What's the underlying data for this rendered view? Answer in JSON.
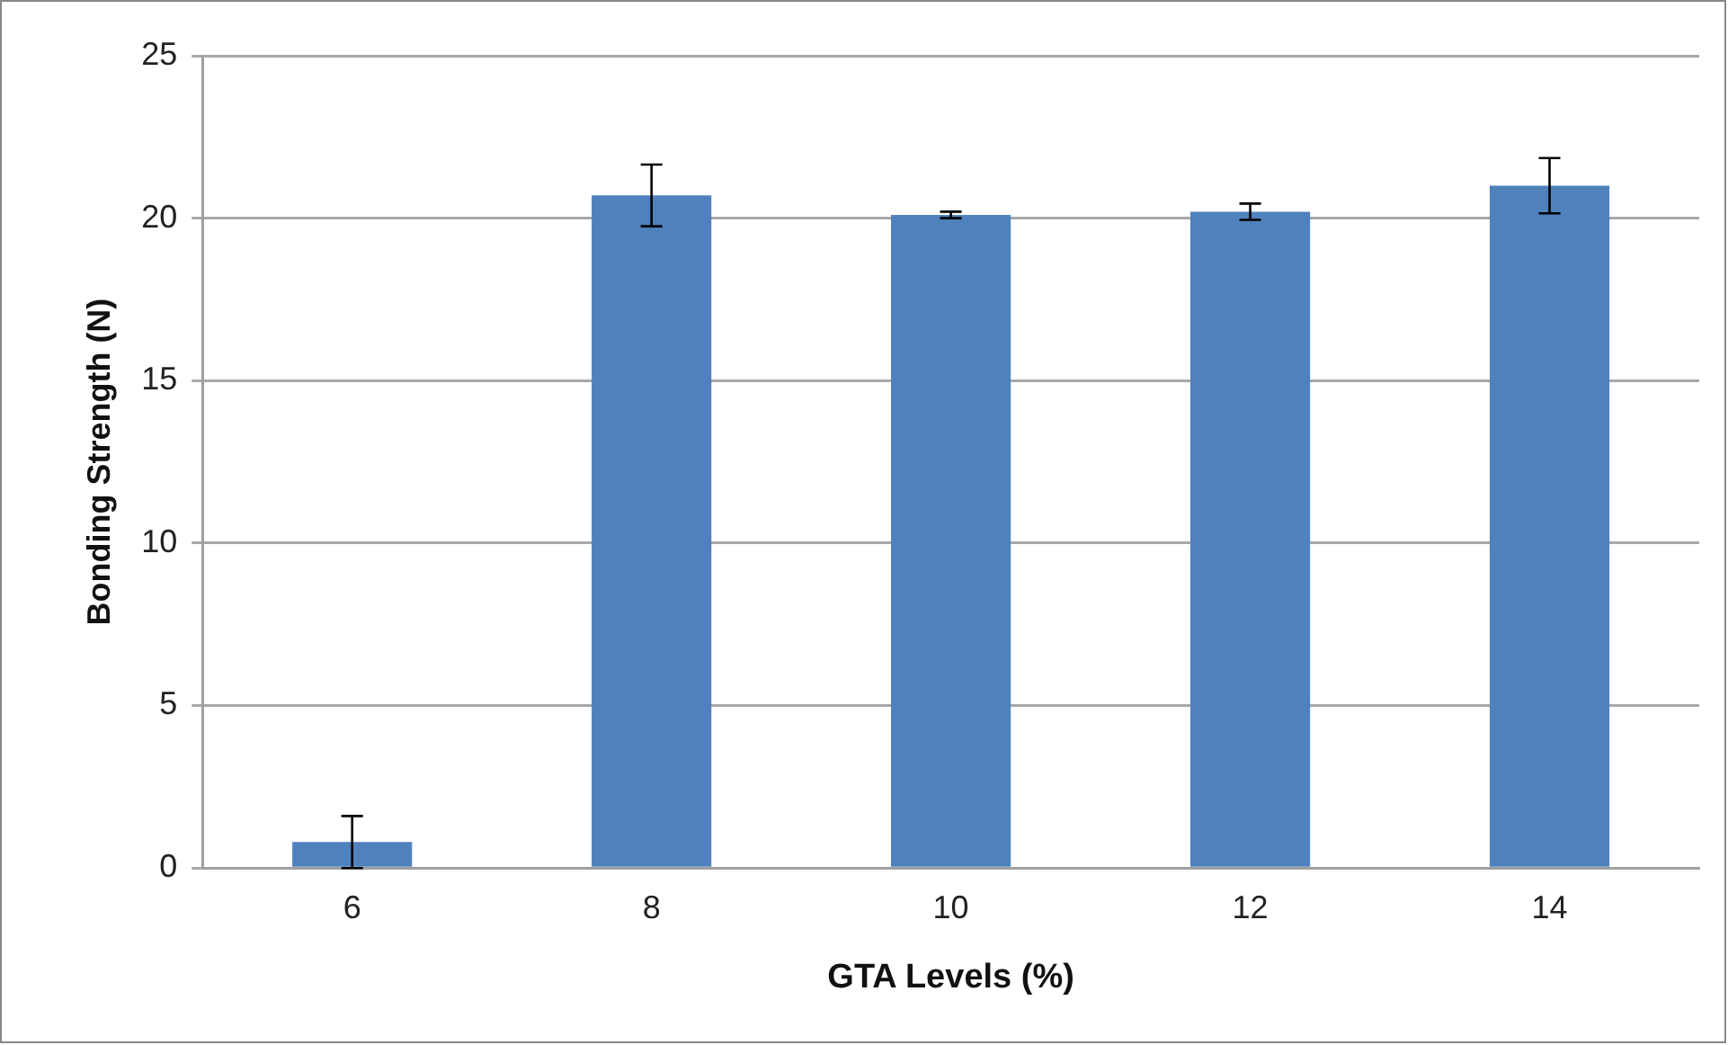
{
  "chart_data": {
    "type": "bar",
    "xlabel": "GTA Levels (%)",
    "ylabel": "Bonding Strength (N)",
    "categories": [
      "6",
      "8",
      "10",
      "12",
      "14"
    ],
    "values": [
      0.8,
      20.7,
      20.1,
      20.2,
      21.0
    ],
    "errors": [
      0.8,
      0.95,
      0.1,
      0.25,
      0.85
    ],
    "color": "#4f81bd",
    "ylim": [
      0,
      25
    ],
    "yticks": [
      0,
      5,
      10,
      15,
      20,
      25
    ],
    "grid": "y",
    "legend": false
  }
}
